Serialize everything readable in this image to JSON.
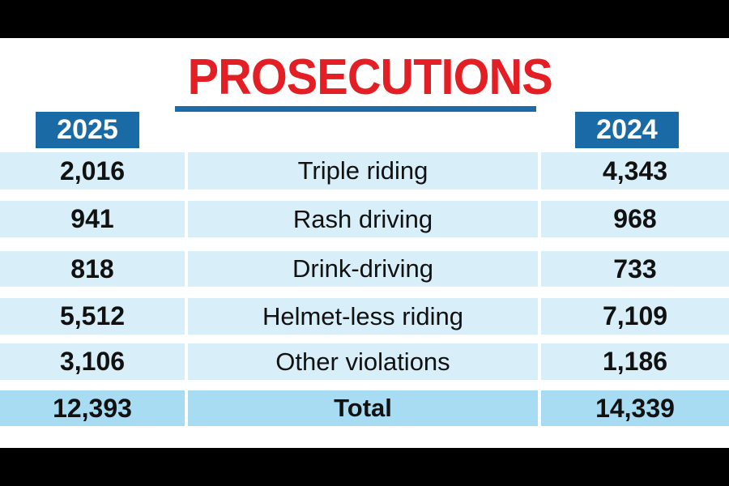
{
  "title": "PROSECUTIONS",
  "years": {
    "left": "2025",
    "right": "2024"
  },
  "rows": [
    {
      "left": "2,016",
      "label": "Triple riding",
      "right": "4,343"
    },
    {
      "left": "941",
      "label": "Rash driving",
      "right": "968"
    },
    {
      "left": "818",
      "label": "Drink-driving",
      "right": "733"
    },
    {
      "left": "5,512",
      "label": "Helmet-less riding",
      "right": "7,109"
    },
    {
      "left": "3,106",
      "label": "Other violations",
      "right": "1,186"
    }
  ],
  "total": {
    "left": "12,393",
    "label": "Total",
    "right": "14,339"
  },
  "colors": {
    "title": "#e31e24",
    "header_blue": "#1a6aa6",
    "row_bg": "#d8eef8",
    "total_bg": "#a8dcf2"
  }
}
